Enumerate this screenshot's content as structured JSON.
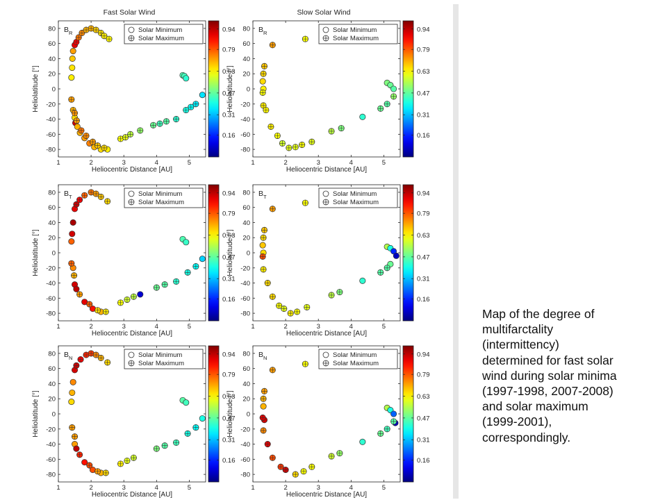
{
  "caption_lines": [
    "Map of the degree of",
    "multifarctality",
    "(intermittency)",
    "determined for fast solar",
    "wind during solar minima",
    "(1997-1998, 2007-2008)",
    "and solar maximum",
    "(1999-2001),",
    "correspondingly."
  ],
  "colorbar": {
    "ticks": [
      "0.94",
      "0.79",
      "0.63",
      "0.47",
      "0.31",
      "0.16"
    ],
    "tick_values": [
      0.94,
      0.79,
      0.63,
      0.47,
      0.31,
      0.16
    ]
  },
  "legend": {
    "solar_minimum": "Solar Minimum",
    "solar_maximum": "Solar Maximum"
  },
  "axes": {
    "xlabel": "Heliocentric Distance [AU]",
    "ylabel": "Heliolatitude [°]",
    "xlim": [
      1,
      5.5
    ],
    "ylim": [
      -90,
      90
    ],
    "xticks": [
      "1",
      "2",
      "3",
      "4",
      "5"
    ],
    "yticks": [
      "80",
      "60",
      "40",
      "20",
      "0",
      "-20",
      "-40",
      "-60",
      "-80"
    ]
  },
  "chart_data": [
    {
      "type": "scatter",
      "title": "Fast Solar Wind",
      "panel_label": "B",
      "panel_sub": "R",
      "series": [
        {
          "name": "Solar Minimum",
          "points": [
            [
              1.5,
              58,
              0.9
            ],
            [
              1.45,
              50,
              0.72
            ],
            [
              1.43,
              40,
              0.68
            ],
            [
              1.42,
              28,
              0.65
            ],
            [
              1.4,
              15,
              0.64
            ],
            [
              1.5,
              -38,
              0.66
            ],
            [
              1.52,
              -45,
              0.92
            ],
            [
              1.58,
              -50,
              0.7
            ],
            [
              1.66,
              -58,
              0.7
            ],
            [
              1.8,
              -65,
              0.72
            ],
            [
              1.95,
              -72,
              0.75
            ],
            [
              2.1,
              -77,
              0.7
            ],
            [
              2.3,
              -80,
              0.66
            ],
            [
              2.5,
              -80,
              0.64
            ],
            [
              4.8,
              18,
              0.45
            ],
            [
              4.85,
              17,
              0.44
            ],
            [
              4.9,
              14,
              0.42
            ],
            [
              5.4,
              -8,
              0.35
            ]
          ]
        },
        {
          "name": "Solar Maximum",
          "points": [
            [
              1.55,
              62,
              0.88
            ],
            [
              1.62,
              68,
              0.76
            ],
            [
              1.72,
              74,
              0.74
            ],
            [
              1.85,
              78,
              0.7
            ],
            [
              2.0,
              80,
              0.7
            ],
            [
              2.15,
              78,
              0.67
            ],
            [
              2.3,
              74,
              0.65
            ],
            [
              2.4,
              70,
              0.64
            ],
            [
              2.55,
              66,
              0.63
            ],
            [
              1.4,
              -14,
              0.72
            ],
            [
              1.45,
              -28,
              0.7
            ],
            [
              1.5,
              -32,
              0.73
            ],
            [
              1.56,
              -42,
              0.72
            ],
            [
              1.7,
              -55,
              0.76
            ],
            [
              1.85,
              -62,
              0.74
            ],
            [
              2.05,
              -70,
              0.72
            ],
            [
              2.2,
              -75,
              0.68
            ],
            [
              2.4,
              -78,
              0.66
            ],
            [
              2.9,
              -66,
              0.62
            ],
            [
              3.05,
              -64,
              0.6
            ],
            [
              3.2,
              -60,
              0.56
            ],
            [
              3.5,
              -55,
              0.52
            ],
            [
              3.9,
              -48,
              0.48
            ],
            [
              4.1,
              -46,
              0.44
            ],
            [
              4.3,
              -43,
              0.46
            ],
            [
              4.6,
              -40,
              0.42
            ],
            [
              4.9,
              -28,
              0.4
            ],
            [
              5.05,
              -24,
              0.38
            ],
            [
              5.2,
              -20,
              0.36
            ]
          ]
        }
      ]
    },
    {
      "type": "scatter",
      "title": "Slow Solar Wind",
      "panel_label": "B",
      "panel_sub": "R",
      "series": [
        {
          "name": "Solar Minimum",
          "points": [
            [
              1.3,
              10,
              0.66
            ],
            [
              1.32,
              0,
              0.64
            ],
            [
              4.35,
              -37,
              0.42
            ],
            [
              5.1,
              8,
              0.5
            ],
            [
              5.2,
              5,
              0.48
            ],
            [
              5.3,
              0,
              0.46
            ]
          ]
        },
        {
          "name": "Solar Maximum",
          "points": [
            [
              1.6,
              58,
              0.72
            ],
            [
              2.6,
              66,
              0.62
            ],
            [
              1.35,
              30,
              0.68
            ],
            [
              1.32,
              20,
              0.66
            ],
            [
              1.3,
              -5,
              0.62
            ],
            [
              1.32,
              -22,
              0.64
            ],
            [
              1.4,
              -28,
              0.63
            ],
            [
              1.55,
              -50,
              0.64
            ],
            [
              1.75,
              -62,
              0.62
            ],
            [
              1.9,
              -72,
              0.58
            ],
            [
              2.1,
              -78,
              0.6
            ],
            [
              2.3,
              -77,
              0.6
            ],
            [
              2.5,
              -74,
              0.62
            ],
            [
              2.8,
              -70,
              0.6
            ],
            [
              3.4,
              -56,
              0.56
            ],
            [
              3.7,
              -52,
              0.5
            ],
            [
              4.9,
              -26,
              0.48
            ],
            [
              5.1,
              -20,
              0.46
            ],
            [
              5.3,
              -10,
              0.52
            ]
          ]
        }
      ]
    },
    {
      "type": "scatter",
      "title": "",
      "panel_label": "B",
      "panel_sub": "T",
      "series": [
        {
          "name": "Solar Minimum",
          "points": [
            [
              1.5,
              58,
              0.9
            ],
            [
              1.45,
              40,
              0.96
            ],
            [
              1.42,
              25,
              0.92
            ],
            [
              1.4,
              15,
              0.78
            ],
            [
              1.45,
              -20,
              0.74
            ],
            [
              1.5,
              -42,
              0.92
            ],
            [
              1.55,
              -48,
              0.94
            ],
            [
              1.8,
              -65,
              0.9
            ],
            [
              2.05,
              -74,
              0.86
            ],
            [
              2.3,
              -78,
              0.7
            ],
            [
              3.5,
              -55,
              0.08
            ],
            [
              4.8,
              18,
              0.45
            ],
            [
              4.9,
              14,
              0.43
            ],
            [
              5.4,
              -8,
              0.33
            ]
          ]
        },
        {
          "name": "Solar Maximum",
          "points": [
            [
              1.55,
              64,
              0.92
            ],
            [
              1.65,
              70,
              0.88
            ],
            [
              1.8,
              76,
              0.78
            ],
            [
              2.0,
              80,
              0.76
            ],
            [
              2.15,
              78,
              0.72
            ],
            [
              2.3,
              74,
              0.68
            ],
            [
              2.5,
              68,
              0.66
            ],
            [
              1.4,
              -14,
              0.78
            ],
            [
              1.48,
              -30,
              0.7
            ],
            [
              1.65,
              -55,
              0.72
            ],
            [
              1.95,
              -68,
              0.78
            ],
            [
              2.2,
              -76,
              0.66
            ],
            [
              2.45,
              -78,
              0.64
            ],
            [
              2.9,
              -66,
              0.62
            ],
            [
              3.1,
              -62,
              0.58
            ],
            [
              3.3,
              -58,
              0.56
            ],
            [
              4.0,
              -46,
              0.48
            ],
            [
              4.25,
              -42,
              0.46
            ],
            [
              4.6,
              -38,
              0.42
            ],
            [
              4.95,
              -26,
              0.4
            ],
            [
              5.2,
              -18,
              0.38
            ]
          ]
        }
      ]
    },
    {
      "type": "scatter",
      "title": "",
      "panel_label": "B",
      "panel_sub": "T",
      "series": [
        {
          "name": "Solar Minimum",
          "points": [
            [
              1.3,
              10,
              0.68
            ],
            [
              1.32,
              0,
              0.66
            ],
            [
              4.35,
              -37,
              0.42
            ],
            [
              5.1,
              8,
              0.55
            ],
            [
              5.2,
              6,
              0.4
            ],
            [
              5.3,
              2,
              0.16
            ],
            [
              5.38,
              -4,
              0.06
            ],
            [
              5.2,
              -15,
              0.48
            ]
          ]
        },
        {
          "name": "Solar Maximum",
          "points": [
            [
              1.6,
              58,
              0.72
            ],
            [
              2.6,
              66,
              0.62
            ],
            [
              1.35,
              30,
              0.68
            ],
            [
              1.32,
              20,
              0.66
            ],
            [
              1.3,
              -5,
              0.8
            ],
            [
              1.32,
              -22,
              0.64
            ],
            [
              1.45,
              -40,
              0.66
            ],
            [
              1.6,
              -58,
              0.66
            ],
            [
              1.8,
              -70,
              0.62
            ],
            [
              1.95,
              -74,
              0.6
            ],
            [
              2.15,
              -80,
              0.64
            ],
            [
              2.35,
              -78,
              0.62
            ],
            [
              2.65,
              -72,
              0.6
            ],
            [
              3.4,
              -56,
              0.56
            ],
            [
              3.65,
              -52,
              0.5
            ],
            [
              4.9,
              -26,
              0.46
            ],
            [
              5.1,
              -20,
              0.46
            ]
          ]
        }
      ]
    },
    {
      "type": "scatter",
      "title": "",
      "panel_label": "B",
      "panel_sub": "N",
      "series": [
        {
          "name": "Solar Minimum",
          "points": [
            [
              1.5,
              58,
              0.92
            ],
            [
              1.45,
              42,
              0.74
            ],
            [
              1.42,
              28,
              0.7
            ],
            [
              1.4,
              16,
              0.66
            ],
            [
              1.5,
              -40,
              0.72
            ],
            [
              1.55,
              -46,
              0.94
            ],
            [
              1.8,
              -64,
              0.86
            ],
            [
              2.05,
              -74,
              0.8
            ],
            [
              2.3,
              -78,
              0.7
            ],
            [
              4.8,
              18,
              0.46
            ],
            [
              4.9,
              15,
              0.44
            ],
            [
              5.4,
              -6,
              0.4
            ]
          ]
        },
        {
          "name": "Solar Maximum",
          "points": [
            [
              1.55,
              64,
              0.92
            ],
            [
              1.68,
              72,
              0.88
            ],
            [
              1.85,
              78,
              0.84
            ],
            [
              2.0,
              80,
              0.82
            ],
            [
              2.15,
              78,
              0.74
            ],
            [
              2.3,
              74,
              0.7
            ],
            [
              2.5,
              68,
              0.66
            ],
            [
              1.42,
              -18,
              0.72
            ],
            [
              1.5,
              -30,
              0.72
            ],
            [
              1.65,
              -54,
              0.84
            ],
            [
              1.95,
              -68,
              0.8
            ],
            [
              2.2,
              -76,
              0.72
            ],
            [
              2.45,
              -78,
              0.66
            ],
            [
              2.9,
              -66,
              0.64
            ],
            [
              3.1,
              -62,
              0.6
            ],
            [
              3.3,
              -58,
              0.58
            ],
            [
              4.0,
              -46,
              0.5
            ],
            [
              4.25,
              -42,
              0.46
            ],
            [
              4.6,
              -38,
              0.44
            ],
            [
              4.95,
              -26,
              0.4
            ],
            [
              5.2,
              -18,
              0.38
            ]
          ]
        }
      ]
    },
    {
      "type": "scatter",
      "title": "",
      "panel_label": "B",
      "panel_sub": "N",
      "series": [
        {
          "name": "Solar Minimum",
          "points": [
            [
              1.32,
              10,
              0.7
            ],
            [
              1.35,
              -8,
              0.92
            ],
            [
              4.35,
              -37,
              0.42
            ],
            [
              5.1,
              8,
              0.55
            ],
            [
              5.2,
              5,
              0.4
            ],
            [
              5.3,
              0,
              0.22
            ],
            [
              5.35,
              -12,
              0.06
            ]
          ]
        },
        {
          "name": "Solar Maximum",
          "points": [
            [
              1.6,
              58,
              0.72
            ],
            [
              2.6,
              66,
              0.62
            ],
            [
              1.35,
              30,
              0.72
            ],
            [
              1.32,
              20,
              0.7
            ],
            [
              1.3,
              -5,
              0.9
            ],
            [
              1.32,
              -22,
              0.74
            ],
            [
              1.45,
              -40,
              0.9
            ],
            [
              1.6,
              -58,
              0.8
            ],
            [
              1.85,
              -70,
              0.82
            ],
            [
              2.0,
              -74,
              0.92
            ],
            [
              2.3,
              -80,
              0.66
            ],
            [
              2.55,
              -76,
              0.62
            ],
            [
              2.8,
              -70,
              0.62
            ],
            [
              3.4,
              -56,
              0.58
            ],
            [
              3.65,
              -52,
              0.52
            ],
            [
              4.9,
              -26,
              0.48
            ],
            [
              5.1,
              -20,
              0.44
            ],
            [
              5.3,
              -10,
              0.46
            ]
          ]
        }
      ]
    }
  ]
}
